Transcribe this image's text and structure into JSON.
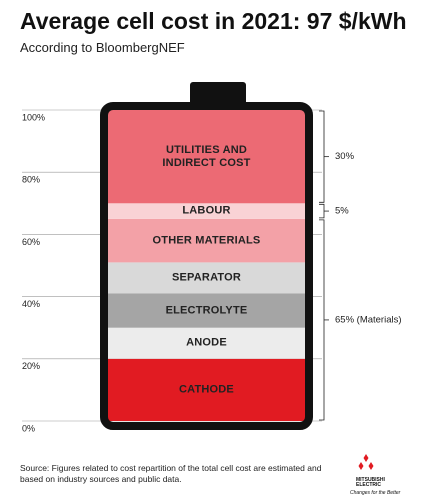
{
  "title": "Average cell cost in 2021: 97 $/kWh",
  "subtitle": "According to BloombergNEF",
  "chart_data": {
    "type": "stacked_battery",
    "ylim": [
      0,
      100
    ],
    "yticks": [
      {
        "value": 0,
        "label": "0%"
      },
      {
        "value": 20,
        "label": "20%"
      },
      {
        "value": 40,
        "label": "40%"
      },
      {
        "value": 60,
        "label": "60%"
      },
      {
        "value": 80,
        "label": "80%"
      },
      {
        "value": 100,
        "label": "100%"
      }
    ],
    "grid": true,
    "series": [
      {
        "name": "CATHODE",
        "color": "#e11b22",
        "values": [
          20
        ]
      },
      {
        "name": "ANODE",
        "color": "#ececec",
        "values": [
          10
        ]
      },
      {
        "name": "ELECTROLYTE",
        "color": "#a5a5a5",
        "values": [
          11
        ]
      },
      {
        "name": "SEPARATOR",
        "color": "#d9d9d9",
        "values": [
          10
        ]
      },
      {
        "name": "OTHER MATERIALS",
        "color": "#f3a1a7",
        "values": [
          14
        ]
      },
      {
        "name": "LABOUR",
        "color": "#f9d2d5",
        "values": [
          5
        ]
      },
      {
        "name": "UTILITIES AND INDIRECT COST",
        "color": "#ec6a74",
        "values": [
          30
        ]
      }
    ],
    "brackets": [
      {
        "label": "30%",
        "value": 30
      },
      {
        "label": "5%",
        "value": 5
      },
      {
        "label": "65% (Materials)",
        "value": 65
      }
    ]
  },
  "footer": {
    "source": "Source: Figures related to cost repartition of the total cell cost are estimated and based on industry sources and public data.",
    "brand": "MITSUBISHI ELECTRIC",
    "tagline": "Changes for the Better"
  }
}
